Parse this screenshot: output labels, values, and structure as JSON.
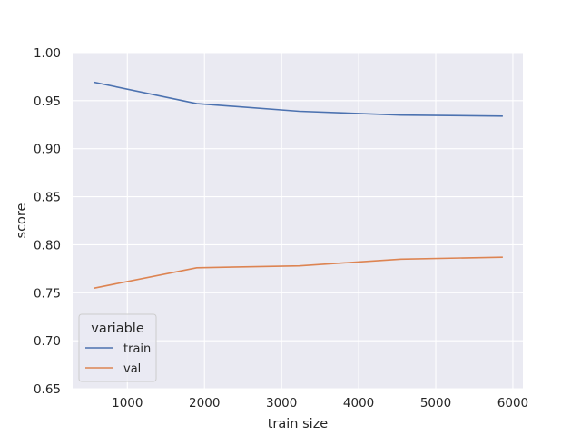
{
  "chart_data": {
    "type": "line",
    "xlabel": "train size",
    "ylabel": "score",
    "xlim": [
      290,
      6130
    ],
    "ylim": [
      0.65,
      1.0
    ],
    "xticks": [
      1000,
      2000,
      3000,
      4000,
      5000,
      6000
    ],
    "xtick_labels": [
      "1000",
      "2000",
      "3000",
      "4000",
      "5000",
      "6000"
    ],
    "yticks": [
      0.65,
      0.7,
      0.75,
      0.8,
      0.85,
      0.9,
      0.95,
      1.0
    ],
    "ytick_labels": [
      "0.65",
      "0.70",
      "0.75",
      "0.80",
      "0.85",
      "0.90",
      "0.95",
      "1.00"
    ],
    "grid": true,
    "legend": {
      "title": "variable",
      "placement": "lower-left"
    },
    "x": [
      580,
      1900,
      3230,
      4550,
      5860
    ],
    "series": [
      {
        "name": "train",
        "color": "#4c72b0",
        "values": [
          0.969,
          0.947,
          0.939,
          0.935,
          0.934
        ]
      },
      {
        "name": "val",
        "color": "#dd8452",
        "values": [
          0.755,
          0.776,
          0.778,
          0.785,
          0.787
        ]
      }
    ],
    "background": "#eaeaf2",
    "grid_color": "#ffffff"
  }
}
